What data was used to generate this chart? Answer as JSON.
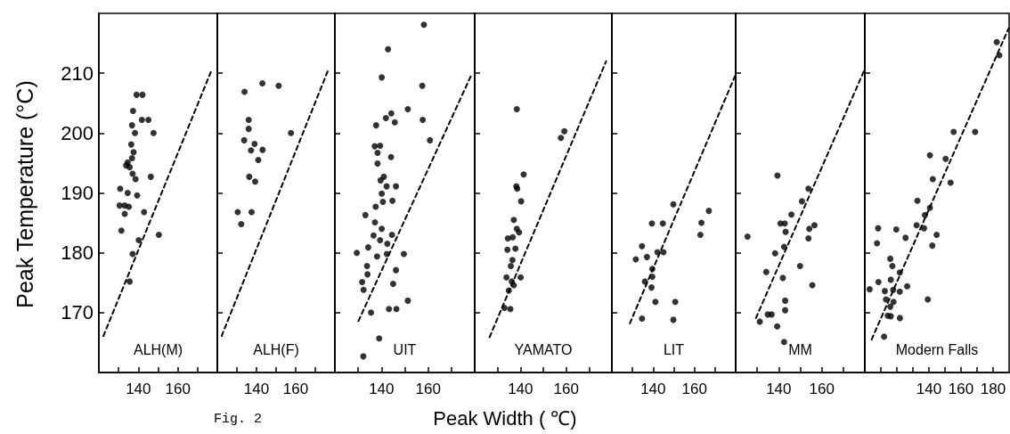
{
  "chart_data": [
    {
      "type": "scatter",
      "ylabel": "Peak Temperature (°C)",
      "annotations": [
        "ALH(M)",
        "Fig. 2"
      ],
      "marker": "circle",
      "grid": false,
      "xlim": [
        120,
        180
      ],
      "xticks": [
        {
          "value": 130,
          "label": null
        },
        140,
        {
          "value": 150,
          "label": null
        },
        160,
        {
          "value": 170,
          "label": null
        }
      ],
      "ylim": [
        160,
        220
      ],
      "yticks": [
        170,
        180,
        190,
        200,
        210
      ],
      "series": [
        {
          "color": "#000000",
          "x": [
            130.8,
            130.5,
            133.1,
            131.4,
            133.1,
            134.6,
            135.2,
            133.8,
            134.6,
            135.6,
            136.8,
            137.6,
            137.1,
            138.6,
            137.3,
            136.8,
            138.3,
            136.4,
            139.4,
            139.1,
            142.1,
            141.8,
            145.1,
            147.7,
            146.3,
            142.9,
            140.2,
            137.1,
            135.6,
            150.4
          ],
          "values": [
            190.7,
            187.9,
            187.9,
            183.7,
            186.5,
            190.0,
            187.7,
            194.6,
            195.1,
            194.3,
            195.8,
            196.8,
            193.2,
            192.3,
            203.7,
            201.3,
            200.0,
            198.1,
            189.6,
            206.4,
            206.4,
            202.2,
            202.2,
            200.0,
            192.7,
            186.8,
            182.1,
            179.8,
            175.2,
            183.0
          ]
        },
        {
          "type": "line",
          "color": "#000000",
          "marker": "none",
          "line_style": "dashed",
          "x": [
            122.3,
            176.7
          ],
          "values": [
            166.1,
            210.2
          ]
        }
      ]
    },
    {
      "type": "scatter",
      "annotations": [
        "ALH(F)"
      ],
      "marker": "circle",
      "grid": false,
      "tick_labels": "x",
      "xlim": [
        120,
        180
      ],
      "xticks": [
        {
          "value": 130,
          "label": null
        },
        140,
        {
          "value": 150,
          "label": null
        },
        160,
        {
          "value": 170,
          "label": null
        }
      ],
      "ylim": [
        160,
        220
      ],
      "yticks": [
        170,
        180,
        190,
        200,
        210
      ],
      "series": [
        {
          "color": "#000000",
          "x": [
            133.9,
            143.0,
            151.3,
            136.0,
            136.0,
            133.7,
            139.0,
            137.2,
            143.1,
            140.9,
            136.3,
            139.3,
            157.6,
            130.4,
            132.2,
            137.5
          ],
          "values": [
            206.9,
            208.3,
            207.9,
            202.2,
            200.7,
            198.8,
            198.2,
            197.1,
            197.2,
            195.5,
            192.7,
            191.9,
            200.0,
            186.8,
            184.8,
            186.8
          ]
        },
        {
          "type": "line",
          "color": "#000000",
          "marker": "none",
          "line_style": "dashed",
          "x": [
            122.2,
            176.3
          ],
          "values": [
            166.1,
            210.3
          ]
        }
      ]
    },
    {
      "type": "scatter",
      "annotations": [
        "UIT"
      ],
      "marker": "circle",
      "grid": false,
      "tick_labels": "x",
      "xlim": [
        120,
        180
      ],
      "xticks": [
        {
          "value": 130,
          "label": null
        },
        140,
        {
          "value": 150,
          "label": null
        },
        160,
        {
          "value": 170,
          "label": null
        }
      ],
      "ylim": [
        160,
        220
      ],
      "yticks": [
        170,
        180,
        190,
        200,
        210
      ],
      "series": [
        {
          "color": "#000000",
          "x": [
            158.2,
            142.8,
            140.1,
            157.5,
            151.3,
            144.2,
            141.9,
            145.7,
            137.7,
            157.7,
            160.8,
            137.1,
            139.4,
            138.3,
            144.1,
            138.3,
            141.0,
            139.6,
            142.2,
            146.2,
            140.1,
            140.6,
            144.7,
            137.5,
            133.1,
            137.2,
            140.1,
            136.6,
            144.5,
            139.4,
            142.5,
            134.3,
            129.4,
            142.3,
            138.1,
            149.6,
            133.8,
            134.0,
            146.2,
            131.7,
            132.3,
            145.0,
            151.3,
            143.2,
            146.4,
            135.5,
            139.0,
            132.2
          ],
          "values": [
            218.1,
            214.0,
            209.3,
            207.9,
            204.0,
            203.3,
            202.5,
            201.8,
            201.3,
            202.2,
            198.8,
            197.8,
            197.9,
            196.7,
            196.0,
            194.9,
            192.7,
            192.1,
            191.1,
            191.1,
            189.9,
            188.5,
            188.7,
            187.7,
            186.3,
            185.1,
            184.0,
            182.9,
            183.0,
            182.1,
            181.5,
            180.9,
            180.0,
            179.8,
            179.4,
            179.8,
            177.8,
            176.4,
            177.1,
            175.1,
            173.8,
            174.8,
            172.0,
            170.6,
            170.6,
            170.0,
            165.7,
            162.7
          ]
        },
        {
          "type": "line",
          "color": "#000000",
          "marker": "none",
          "line_style": "dashed",
          "x": [
            130.1,
            178.9
          ],
          "values": [
            168.6,
            210.0
          ]
        }
      ]
    },
    {
      "type": "scatter",
      "xlabel": "Peak Width ( ℃)",
      "annotations": [
        "YAMATO"
      ],
      "marker": "circle",
      "grid": false,
      "tick_labels": "x",
      "xlim": [
        120,
        180
      ],
      "xticks": [
        {
          "value": 130,
          "label": null
        },
        140,
        {
          "value": 150,
          "label": null
        },
        160,
        {
          "value": 170,
          "label": null
        }
      ],
      "ylim": [
        160,
        220
      ],
      "yticks": [
        170,
        180,
        190,
        200,
        210
      ],
      "series": [
        {
          "color": "#000000",
          "x": [
            138.4,
            157.7,
            159.2,
            141.4,
            138.2,
            138.6,
            140.3,
            137.1,
            138.4,
            139.4,
            134.5,
            136.6,
            134.3,
            137.8,
            136.5,
            135.8,
            133.9,
            136.2,
            140.1,
            137.1,
            134.9,
            133.0,
            135.6
          ],
          "values": [
            204.0,
            199.2,
            200.3,
            193.1,
            191.1,
            190.7,
            188.6,
            185.5,
            184.0,
            183.4,
            182.4,
            182.6,
            180.5,
            180.7,
            178.8,
            177.8,
            175.9,
            175.2,
            175.9,
            174.6,
            173.7,
            170.8,
            170.6
          ]
        },
        {
          "type": "line",
          "color": "#000000",
          "marker": "none",
          "line_style": "dashed",
          "x": [
            126.5,
            177.5
          ],
          "values": [
            165.9,
            212.0
          ]
        }
      ]
    },
    {
      "type": "scatter",
      "annotations": [
        "LIT"
      ],
      "marker": "circle",
      "grid": false,
      "tick_labels": "x",
      "xlim": [
        120,
        180
      ],
      "xticks": [
        {
          "value": 130,
          "label": null
        },
        140,
        {
          "value": 150,
          "label": null
        },
        160,
        {
          "value": 170,
          "label": null
        }
      ],
      "ylim": [
        160,
        220
      ],
      "yticks": [
        170,
        180,
        190,
        200,
        210
      ],
      "series": [
        {
          "color": "#000000",
          "x": [
            149.8,
            167.0,
            139.4,
            144.7,
            163.4,
            162.9,
            134.6,
            131.6,
            137.0,
            142.1,
            145.0,
            139.6,
            136.0,
            139.6,
            139.2,
            141.1,
            150.7,
            134.6,
            149.8
          ],
          "values": [
            188.1,
            187.0,
            184.9,
            184.9,
            185.0,
            183.0,
            181.1,
            178.9,
            179.3,
            180.1,
            180.1,
            177.3,
            175.2,
            176.0,
            174.2,
            171.8,
            171.8,
            169.0,
            168.8
          ]
        },
        {
          "type": "line",
          "color": "#000000",
          "marker": "none",
          "line_style": "dashed",
          "x": [
            128.7,
            180.0
          ],
          "values": [
            168.2,
            209.8
          ]
        }
      ]
    },
    {
      "type": "scatter",
      "annotations": [
        "MM"
      ],
      "marker": "circle",
      "grid": false,
      "tick_labels": "x",
      "xlim": [
        120,
        180
      ],
      "xticks": [
        {
          "value": 130,
          "label": null
        },
        140,
        {
          "value": 150,
          "label": null
        },
        160,
        {
          "value": 170,
          "label": null
        }
      ],
      "ylim": [
        160,
        220
      ],
      "yticks": [
        170,
        180,
        190,
        200,
        210
      ],
      "series": [
        {
          "color": "#000000",
          "x": [
            125.5,
            139.4,
            153.8,
            150.8,
            145.9,
            140.8,
            142.8,
            143.2,
            154.2,
            156.6,
            153.8,
            142.5,
            138.3,
            149.9,
            134.2,
            141.9,
            155.6,
            143.0,
            143.0,
            131.2,
            134.9,
            136.7,
            139.3,
            142.5
          ],
          "values": [
            182.7,
            192.9,
            190.7,
            188.6,
            186.4,
            184.9,
            184.9,
            183.5,
            184.0,
            184.6,
            182.4,
            181.0,
            179.9,
            177.8,
            176.8,
            175.8,
            174.6,
            172.0,
            170.4,
            168.5,
            169.7,
            169.7,
            167.7,
            165.1
          ]
        },
        {
          "type": "line",
          "color": "#000000",
          "marker": "none",
          "line_style": "dashed",
          "x": [
            129.4,
            180.0
          ],
          "values": [
            169.1,
            210.7
          ]
        }
      ]
    },
    {
      "type": "scatter",
      "annotations": [
        "Modern Falls"
      ],
      "marker": "circle",
      "grid": false,
      "tick_labels": "x",
      "xlim": [
        100,
        190
      ],
      "xticks": [
        {
          "value": 110,
          "label": null
        },
        {
          "value": 120,
          "label": null
        },
        {
          "value": 130,
          "label": null
        },
        140,
        {
          "value": 150,
          "label": null
        },
        160,
        {
          "value": 170,
          "label": null
        },
        180
      ],
      "ylim": [
        160,
        220
      ],
      "yticks": [
        170,
        180,
        190,
        200,
        210
      ],
      "series": [
        {
          "color": "#000000",
          "x": [
            182.3,
            183.9,
            155.4,
            168.8,
            140.6,
            150.4,
            153.5,
            142.4,
            132.8,
            137.5,
            140.6,
            132.3,
            136.9,
            144.8,
            142.1,
            108.3,
            107.6,
            119.6,
            125.4,
            115.9,
            117.2,
            121.8,
            103.0,
            108.5,
            112.5,
            116.2,
            117.7,
            121.8,
            126.4,
            113.2,
            117.9,
            115.9,
            114.3,
            116.2,
            121.9,
            139.3,
            112.0
          ],
          "values": [
            215.2,
            213.0,
            200.2,
            200.2,
            196.3,
            195.7,
            191.7,
            192.3,
            188.7,
            186.3,
            187.5,
            184.6,
            184.1,
            183.0,
            181.2,
            184.1,
            181.6,
            183.9,
            182.5,
            179.0,
            177.8,
            176.7,
            173.9,
            175.1,
            173.6,
            175.5,
            173.8,
            173.5,
            174.4,
            172.2,
            171.8,
            171.0,
            169.5,
            169.4,
            169.1,
            172.2,
            166.0
          ]
        },
        {
          "type": "line",
          "color": "#000000",
          "marker": "none",
          "line_style": "dashed",
          "x": [
            104.2,
            189.7
          ],
          "values": [
            165.5,
            217.5
          ]
        }
      ]
    }
  ]
}
